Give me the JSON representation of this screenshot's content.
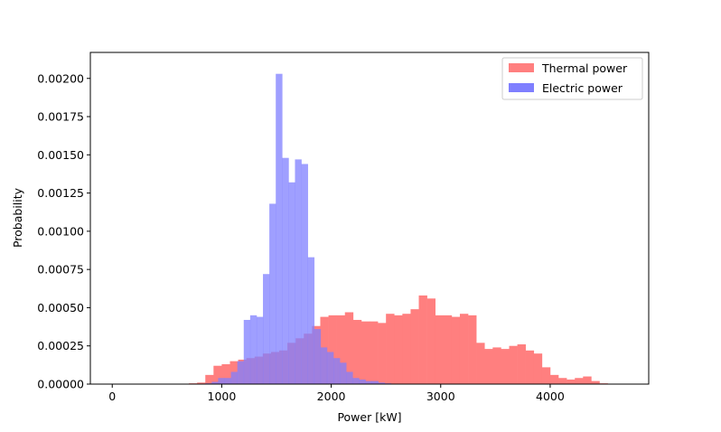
{
  "chart_data": {
    "type": "bar",
    "xlabel": "Power [kW]",
    "ylabel": "Probability",
    "xlim": [
      -200,
      4900
    ],
    "ylim": [
      0,
      0.00217
    ],
    "xticks": [
      0,
      1000,
      2000,
      3000,
      4000
    ],
    "xtick_labels": [
      "0",
      "1000",
      "2000",
      "3000",
      "4000"
    ],
    "yticks": [
      0,
      0.00025,
      0.0005,
      0.00075,
      0.001,
      0.00125,
      0.0015,
      0.00175,
      0.002
    ],
    "ytick_labels": [
      "0.00000",
      "0.00025",
      "0.00050",
      "0.00075",
      "0.00100",
      "0.00125",
      "0.00150",
      "0.00175",
      "0.00200"
    ],
    "grid": false,
    "legend_position": "top-right",
    "series": [
      {
        "name": "Thermal power",
        "color": "#ff7f7f",
        "bin_start": 700,
        "bin_width": 75,
        "values": [
          5e-06,
          1e-05,
          6e-05,
          0.00012,
          0.00013,
          0.00015,
          0.00016,
          0.00017,
          0.00018,
          0.0002,
          0.00021,
          0.00022,
          0.00027,
          0.0003,
          0.00033,
          0.00038,
          0.00044,
          0.00045,
          0.00045,
          0.00047,
          0.00042,
          0.00041,
          0.00041,
          0.0004,
          0.00046,
          0.00045,
          0.00046,
          0.00049,
          0.00058,
          0.00056,
          0.00045,
          0.00045,
          0.00044,
          0.00046,
          0.00045,
          0.00027,
          0.00023,
          0.00024,
          0.00023,
          0.00025,
          0.00026,
          0.00022,
          0.0002,
          0.00011,
          6e-05,
          4e-05,
          3e-05,
          4e-05,
          5e-05,
          2e-05,
          5e-06
        ]
      },
      {
        "name": "Electric power",
        "color": "#7f7fff",
        "bin_start": 850,
        "bin_width": 58.5,
        "values": [
          5e-06,
          1.5e-05,
          4e-05,
          4e-05,
          8e-05,
          0.00015,
          0.00042,
          0.00045,
          0.00044,
          0.00072,
          0.00118,
          0.00203,
          0.00148,
          0.00132,
          0.00147,
          0.00144,
          0.00083,
          0.00036,
          0.00024,
          0.00021,
          0.00017,
          0.00014,
          8e-05,
          4e-05,
          3e-05,
          2e-05,
          2e-05,
          1e-05,
          5e-06,
          3e-06
        ]
      }
    ]
  }
}
